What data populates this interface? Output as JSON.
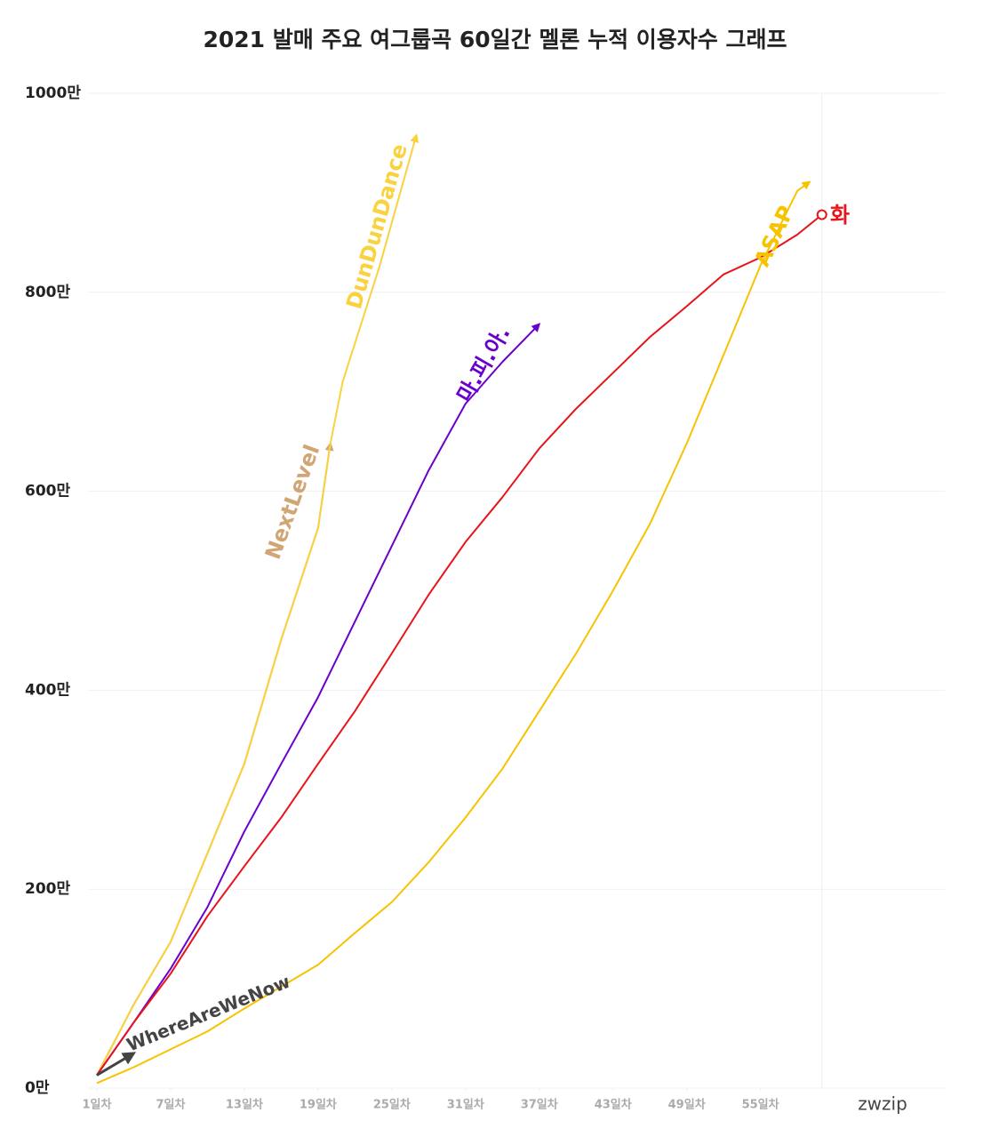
{
  "chart_data": {
    "type": "line",
    "title": "2021 발매 주요 여그룹곡 60일간 멜론 누적 이용자수 그래프",
    "watermark": "zwzip",
    "xlim": [
      1,
      70
    ],
    "ylim": [
      0,
      1000
    ],
    "xticks": [
      {
        "value": 1,
        "label": "1일차"
      },
      {
        "value": 7,
        "label": "7일차"
      },
      {
        "value": 13,
        "label": "13일차"
      },
      {
        "value": 19,
        "label": "19일차"
      },
      {
        "value": 25,
        "label": "25일차"
      },
      {
        "value": 31,
        "label": "31일차"
      },
      {
        "value": 37,
        "label": "37일차"
      },
      {
        "value": 43,
        "label": "43일차"
      },
      {
        "value": 49,
        "label": "49일차"
      },
      {
        "value": 55,
        "label": "55일차"
      }
    ],
    "yticks": [
      {
        "value": 0,
        "label": "0만"
      },
      {
        "value": 200,
        "label": "200만"
      },
      {
        "value": 400,
        "label": "400만"
      },
      {
        "value": 600,
        "label": "600만"
      },
      {
        "value": 800,
        "label": "800만"
      },
      {
        "value": 1000,
        "label": "1000만"
      }
    ],
    "reference_x": 60,
    "grid": true,
    "series": [
      {
        "name": "NextLevel",
        "color": "#d2a574",
        "end": "arrow",
        "x": [
          1,
          4,
          7,
          10,
          13,
          16,
          19,
          20
        ],
        "values": [
          13,
          84,
          147,
          236,
          326,
          451,
          563,
          648
        ]
      },
      {
        "name": "DunDunDance",
        "color": "#f9d23e",
        "end": "arrow",
        "x": [
          1,
          4,
          7,
          10,
          13,
          16,
          19,
          20,
          21,
          24,
          27
        ],
        "values": [
          13,
          84,
          147,
          236,
          326,
          451,
          563,
          648,
          710,
          826,
          958
        ]
      },
      {
        "name": "마.피.아.",
        "color": "#6a00cc",
        "end": "arrow",
        "x": [
          1,
          4,
          7,
          10,
          13,
          16,
          19,
          22,
          25,
          28,
          31,
          34,
          37
        ],
        "values": [
          13,
          66,
          120,
          182,
          258,
          326,
          393,
          469,
          545,
          621,
          688,
          730,
          768
        ]
      },
      {
        "name": "화",
        "color": "#e8141b",
        "end": "circle",
        "x": [
          1,
          4,
          7,
          10,
          13,
          16,
          19,
          22,
          25,
          28,
          31,
          34,
          37,
          40,
          43,
          46,
          49,
          52,
          55,
          58,
          60
        ],
        "values": [
          13,
          66,
          115,
          173,
          223,
          272,
          326,
          379,
          437,
          496,
          549,
          594,
          643,
          683,
          719,
          755,
          786,
          818,
          835,
          858,
          878
        ]
      },
      {
        "name": "ASAP",
        "color": "#f7c300",
        "end": "arrow",
        "x": [
          1,
          4,
          7,
          10,
          13,
          16,
          19,
          22,
          25,
          28,
          31,
          34,
          37,
          40,
          43,
          46,
          49,
          52,
          55,
          58,
          59
        ],
        "values": [
          5,
          21,
          39,
          57,
          80,
          102,
          124,
          156,
          187,
          227,
          272,
          321,
          379,
          437,
          500,
          567,
          648,
          737,
          827,
          902,
          911
        ]
      },
      {
        "name": "WhereAreWeNow",
        "color": "#444444",
        "end": "arrow",
        "x": [
          1,
          4
        ],
        "values": [
          13,
          35
        ]
      }
    ]
  }
}
